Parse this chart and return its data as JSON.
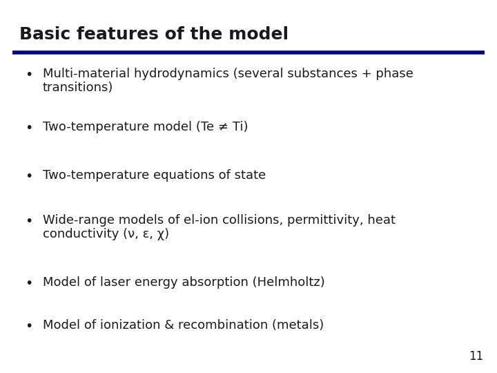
{
  "title": "Basic features of the model",
  "title_color": "#1a1a1a",
  "title_fontsize": 18,
  "line_color": "#00008B",
  "background_color": "#f0f0f0",
  "slide_bg": "#f0f0f0",
  "bullet_items": [
    {
      "line1": "Multi-material hydrodynamics (several substances + phase",
      "line2": "transitions)"
    },
    {
      "line1": "Two-temperature model (Te ≠ Ti)",
      "line2": null
    },
    {
      "line1": "Two-temperature equations of state",
      "line2": null
    },
    {
      "line1": "Wide-range models of el-ion collisions, permittivity, heat",
      "line2": "conductivity (ν, ε, χ)"
    },
    {
      "line1": "Model of laser energy absorption (Helmholtz)",
      "line2": null
    },
    {
      "line1": "Model of ionization & recombination (metals)",
      "line2": null
    }
  ],
  "bullet_color": "#1a1a1a",
  "bullet_fontsize": 13,
  "page_number": "11",
  "page_number_fontsize": 12
}
